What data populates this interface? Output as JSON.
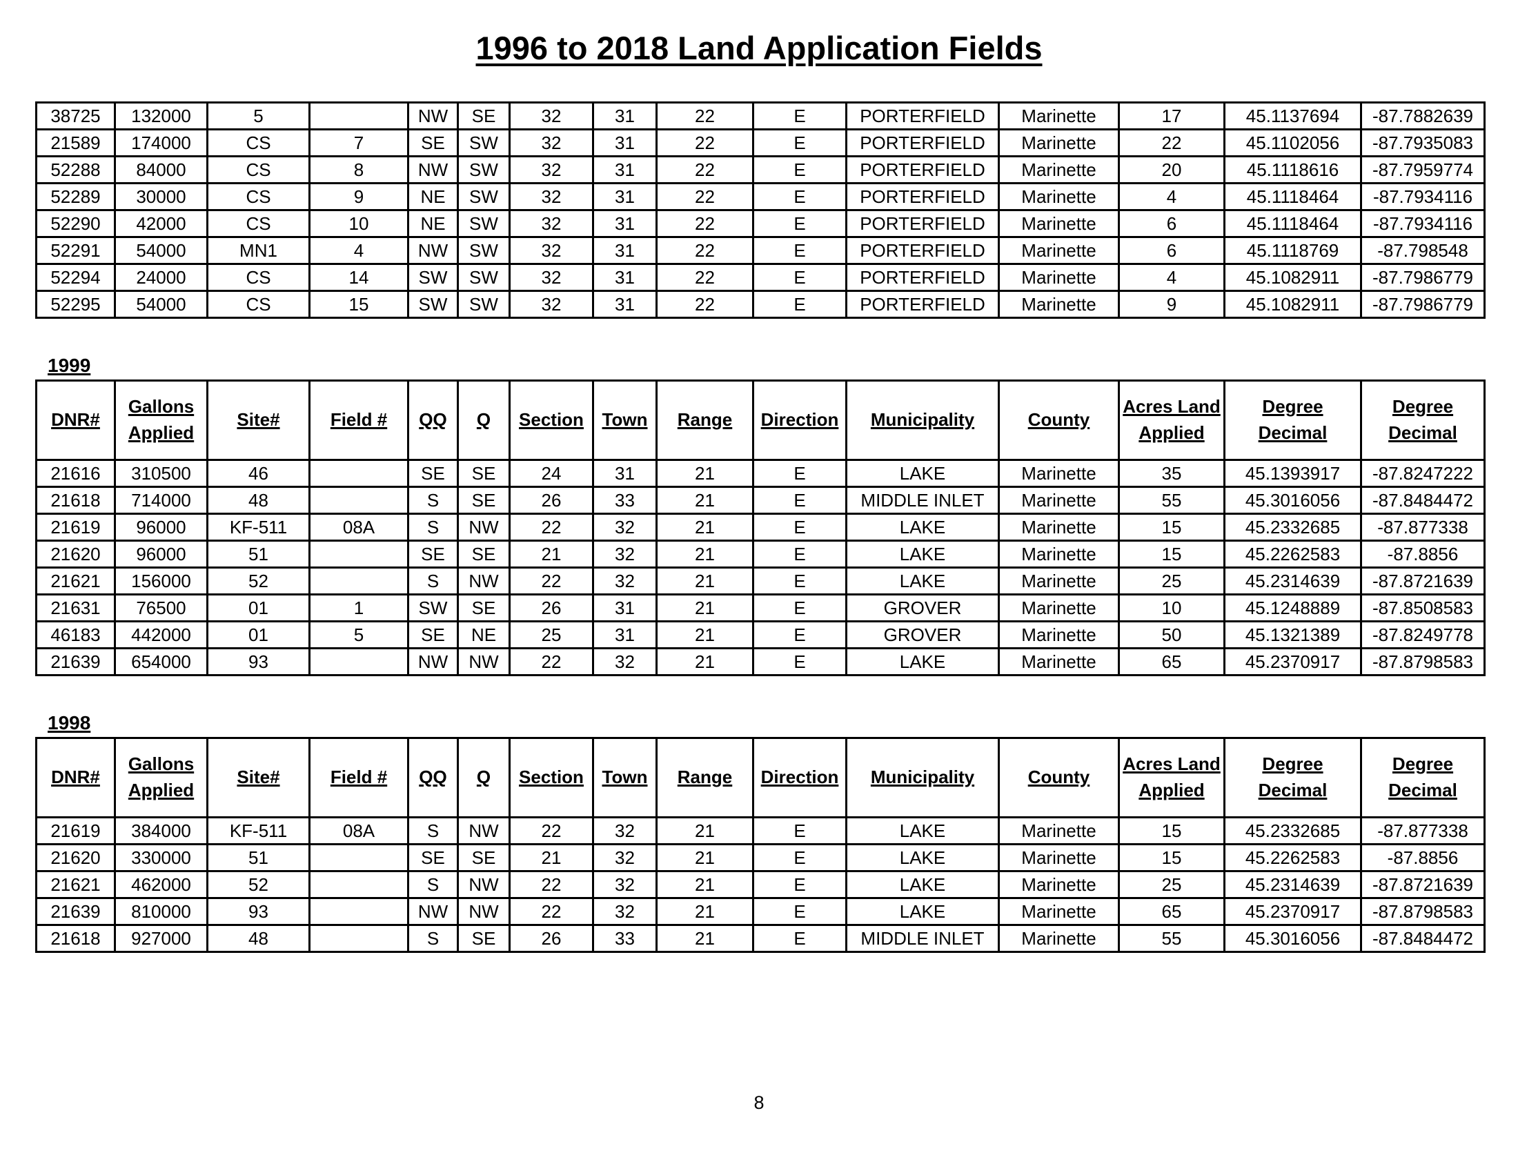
{
  "title": "1996 to 2018 Land Application Fields",
  "page_number": "8",
  "columns": [
    [
      "DNR#"
    ],
    [
      "Gallons",
      "Applied"
    ],
    [
      "Site#"
    ],
    [
      "Field #"
    ],
    [
      "QQ"
    ],
    [
      "Q"
    ],
    [
      "Section"
    ],
    [
      "Town"
    ],
    [
      "Range"
    ],
    [
      "Direction"
    ],
    [
      "Municipality"
    ],
    [
      "County"
    ],
    [
      "Acres Land",
      "Applied"
    ],
    [
      "Degree",
      "Decimal"
    ],
    [
      "Degree",
      "Decimal"
    ]
  ],
  "tables": [
    {
      "year": "",
      "show_header": false,
      "rows": [
        [
          "38725",
          "132000",
          "5",
          "",
          "NW",
          "SE",
          "32",
          "31",
          "22",
          "E",
          "PORTERFIELD",
          "Marinette",
          "17",
          "45.1137694",
          "-87.7882639"
        ],
        [
          "21589",
          "174000",
          "CS",
          "7",
          "SE",
          "SW",
          "32",
          "31",
          "22",
          "E",
          "PORTERFIELD",
          "Marinette",
          "22",
          "45.1102056",
          "-87.7935083"
        ],
        [
          "52288",
          "84000",
          "CS",
          "8",
          "NW",
          "SW",
          "32",
          "31",
          "22",
          "E",
          "PORTERFIELD",
          "Marinette",
          "20",
          "45.1118616",
          "-87.7959774"
        ],
        [
          "52289",
          "30000",
          "CS",
          "9",
          "NE",
          "SW",
          "32",
          "31",
          "22",
          "E",
          "PORTERFIELD",
          "Marinette",
          "4",
          "45.1118464",
          "-87.7934116"
        ],
        [
          "52290",
          "42000",
          "CS",
          "10",
          "NE",
          "SW",
          "32",
          "31",
          "22",
          "E",
          "PORTERFIELD",
          "Marinette",
          "6",
          "45.1118464",
          "-87.7934116"
        ],
        [
          "52291",
          "54000",
          "MN1",
          "4",
          "NW",
          "SW",
          "32",
          "31",
          "22",
          "E",
          "PORTERFIELD",
          "Marinette",
          "6",
          "45.1118769",
          "-87.798548"
        ],
        [
          "52294",
          "24000",
          "CS",
          "14",
          "SW",
          "SW",
          "32",
          "31",
          "22",
          "E",
          "PORTERFIELD",
          "Marinette",
          "4",
          "45.1082911",
          "-87.7986779"
        ],
        [
          "52295",
          "54000",
          "CS",
          "15",
          "SW",
          "SW",
          "32",
          "31",
          "22",
          "E",
          "PORTERFIELD",
          "Marinette",
          "9",
          "45.1082911",
          "-87.7986779"
        ]
      ]
    },
    {
      "year": "1999",
      "show_header": true,
      "rows": [
        [
          "21616",
          "310500",
          "46",
          "",
          "SE",
          "SE",
          "24",
          "31",
          "21",
          "E",
          "LAKE",
          "Marinette",
          "35",
          "45.1393917",
          "-87.8247222"
        ],
        [
          "21618",
          "714000",
          "48",
          "",
          "S",
          "SE",
          "26",
          "33",
          "21",
          "E",
          "MIDDLE INLET",
          "Marinette",
          "55",
          "45.3016056",
          "-87.8484472"
        ],
        [
          "21619",
          "96000",
          "KF-511",
          "08A",
          "S",
          "NW",
          "22",
          "32",
          "21",
          "E",
          "LAKE",
          "Marinette",
          "15",
          "45.2332685",
          "-87.877338"
        ],
        [
          "21620",
          "96000",
          "51",
          "",
          "SE",
          "SE",
          "21",
          "32",
          "21",
          "E",
          "LAKE",
          "Marinette",
          "15",
          "45.2262583",
          "-87.8856"
        ],
        [
          "21621",
          "156000",
          "52",
          "",
          "S",
          "NW",
          "22",
          "32",
          "21",
          "E",
          "LAKE",
          "Marinette",
          "25",
          "45.2314639",
          "-87.8721639"
        ],
        [
          "21631",
          "76500",
          "01",
          "1",
          "SW",
          "SE",
          "26",
          "31",
          "21",
          "E",
          "GROVER",
          "Marinette",
          "10",
          "45.1248889",
          "-87.8508583"
        ],
        [
          "46183",
          "442000",
          "01",
          "5",
          "SE",
          "NE",
          "25",
          "31",
          "21",
          "E",
          "GROVER",
          "Marinette",
          "50",
          "45.1321389",
          "-87.8249778"
        ],
        [
          "21639",
          "654000",
          "93",
          "",
          "NW",
          "NW",
          "22",
          "32",
          "21",
          "E",
          "LAKE",
          "Marinette",
          "65",
          "45.2370917",
          "-87.8798583"
        ]
      ]
    },
    {
      "year": "1998",
      "show_header": true,
      "rows": [
        [
          "21619",
          "384000",
          "KF-511",
          "08A",
          "S",
          "NW",
          "22",
          "32",
          "21",
          "E",
          "LAKE",
          "Marinette",
          "15",
          "45.2332685",
          "-87.877338"
        ],
        [
          "21620",
          "330000",
          "51",
          "",
          "SE",
          "SE",
          "21",
          "32",
          "21",
          "E",
          "LAKE",
          "Marinette",
          "15",
          "45.2262583",
          "-87.8856"
        ],
        [
          "21621",
          "462000",
          "52",
          "",
          "S",
          "NW",
          "22",
          "32",
          "21",
          "E",
          "LAKE",
          "Marinette",
          "25",
          "45.2314639",
          "-87.8721639"
        ],
        [
          "21639",
          "810000",
          "93",
          "",
          "NW",
          "NW",
          "22",
          "32",
          "21",
          "E",
          "LAKE",
          "Marinette",
          "65",
          "45.2370917",
          "-87.8798583"
        ],
        [
          "21618",
          "927000",
          "48",
          "",
          "S",
          "SE",
          "26",
          "33",
          "21",
          "E",
          "MIDDLE INLET",
          "Marinette",
          "55",
          "45.3016056",
          "-87.8484472"
        ]
      ]
    }
  ]
}
